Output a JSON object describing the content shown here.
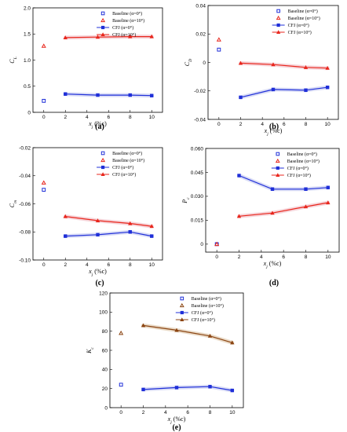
{
  "figure": {
    "panel_labels": [
      "(a)",
      "(b)",
      "(c)",
      "(d)",
      "(e)"
    ]
  },
  "legend_labels": [
    "Baseline (α=0°)",
    "Baseline (α=10°)",
    "CFJ (α=0°)",
    "CFJ (α=10°)"
  ],
  "colors": {
    "blue": "#1f2fd8",
    "red": "#e8261c",
    "brown": "#8b4513",
    "tube_pink": "#f6d5da",
    "tube_blue": "#d9dcf6",
    "tube_tan": "#eadbc8"
  },
  "chart_data": [
    {
      "type": "scatter",
      "panel": "(a)",
      "xlabel": "x_j (%c)",
      "ylabel": "C_L",
      "xlim": [
        -1,
        11
      ],
      "xticks": [
        0,
        2,
        4,
        6,
        8,
        10
      ],
      "xtick_labels": [
        "0",
        "2",
        "4",
        "6",
        "8",
        "10"
      ],
      "ylim": [
        0,
        2.0
      ],
      "yticks": [
        0,
        0.5,
        1.0,
        1.5,
        2.0
      ],
      "ytick_labels": [
        "0",
        "0.5",
        "1.0",
        "1.5",
        "2.0"
      ],
      "legend_position": "top-right",
      "series": [
        {
          "name": "Baseline (α=0°)",
          "x": [
            0
          ],
          "y": [
            0.22
          ]
        },
        {
          "name": "Baseline (α=10°)",
          "x": [
            0
          ],
          "y": [
            1.27
          ]
        },
        {
          "name": "CFJ (α=0°)",
          "x": [
            2,
            5,
            8,
            10
          ],
          "y": [
            0.35,
            0.33,
            0.33,
            0.32
          ]
        },
        {
          "name": "CFJ (α=10°)",
          "x": [
            2,
            5,
            8,
            10
          ],
          "y": [
            1.43,
            1.44,
            1.45,
            1.45
          ]
        }
      ]
    },
    {
      "type": "scatter",
      "panel": "(b)",
      "xlabel": "x_j (%c)",
      "ylabel": "C_D",
      "xlim": [
        -1,
        11
      ],
      "xticks": [
        0,
        2,
        4,
        6,
        8,
        10
      ],
      "xtick_labels": [
        "0",
        "2",
        "4",
        "6",
        "8",
        "10"
      ],
      "ylim": [
        -0.04,
        0.04
      ],
      "yticks": [
        -0.04,
        -0.02,
        0,
        0.02,
        0.04
      ],
      "ytick_labels": [
        "-0.04",
        "-0.02",
        "0",
        "0.02",
        "0.04"
      ],
      "legend_position": "top-right",
      "series": [
        {
          "name": "Baseline (α=0°)",
          "x": [
            0
          ],
          "y": [
            0.009
          ]
        },
        {
          "name": "Baseline (α=10°)",
          "x": [
            0
          ],
          "y": [
            0.016
          ]
        },
        {
          "name": "CFJ (α=0°)",
          "x": [
            2,
            5,
            8,
            10
          ],
          "y": [
            -0.0245,
            -0.019,
            -0.0195,
            -0.0175
          ]
        },
        {
          "name": "CFJ (α=10°)",
          "x": [
            2,
            5,
            8,
            10
          ],
          "y": [
            -0.0005,
            -0.0015,
            -0.0035,
            -0.004
          ]
        }
      ]
    },
    {
      "type": "scatter",
      "panel": "(c)",
      "xlabel": "x_j (%c)",
      "ylabel": "C_m",
      "xlim": [
        -1,
        11
      ],
      "xticks": [
        0,
        2,
        4,
        6,
        8,
        10
      ],
      "xtick_labels": [
        "0",
        "2",
        "4",
        "6",
        "8",
        "10"
      ],
      "ylim": [
        -0.1,
        -0.02
      ],
      "yticks": [
        -0.1,
        -0.08,
        -0.06,
        -0.04,
        -0.02
      ],
      "ytick_labels": [
        "-0.10",
        "-0.08",
        "-0.06",
        "-0.04",
        "-0.02"
      ],
      "legend_position": "top-right",
      "series": [
        {
          "name": "Baseline (α=0°)",
          "x": [
            0
          ],
          "y": [
            -0.05
          ]
        },
        {
          "name": "Baseline (α=10°)",
          "x": [
            0
          ],
          "y": [
            -0.045
          ]
        },
        {
          "name": "CFJ (α=0°)",
          "x": [
            2,
            5,
            8,
            10
          ],
          "y": [
            -0.083,
            -0.082,
            -0.08,
            -0.083
          ]
        },
        {
          "name": "CFJ (α=10°)",
          "x": [
            2,
            5,
            8,
            10
          ],
          "y": [
            -0.069,
            -0.072,
            -0.074,
            -0.076
          ]
        }
      ]
    },
    {
      "type": "scatter",
      "panel": "(d)",
      "xlabel": "x_j (%c)",
      "ylabel": "P_c",
      "xlim": [
        -1,
        11
      ],
      "xticks": [
        0,
        2,
        4,
        6,
        8,
        10
      ],
      "xtick_labels": [
        "0",
        "2",
        "4",
        "6",
        "8",
        "10"
      ],
      "ylim": [
        -0.005,
        0.06
      ],
      "yticks": [
        0,
        0.015,
        0.03,
        0.045,
        0.06
      ],
      "ytick_labels": [
        "0",
        "0.015",
        "0.030",
        "0.045",
        "0.060"
      ],
      "legend_position": "top-right",
      "series": [
        {
          "name": "Baseline (α=0°)",
          "x": [
            0
          ],
          "y": [
            0
          ]
        },
        {
          "name": "Baseline (α=10°)",
          "x": [
            0
          ],
          "y": [
            0
          ]
        },
        {
          "name": "CFJ (α=0°)",
          "x": [
            2,
            5,
            8,
            10
          ],
          "y": [
            0.043,
            0.0345,
            0.0345,
            0.0355
          ]
        },
        {
          "name": "CFJ (α=10°)",
          "x": [
            2,
            5,
            8,
            10
          ],
          "y": [
            0.0175,
            0.0195,
            0.0235,
            0.026
          ]
        }
      ]
    },
    {
      "type": "scatter",
      "panel": "(e)",
      "xlabel": "x_j (%c)",
      "ylabel": "K_c",
      "xlim": [
        -1,
        11
      ],
      "xticks": [
        0,
        2,
        4,
        6,
        8,
        10
      ],
      "xtick_labels": [
        "0",
        "2",
        "4",
        "6",
        "8",
        "10"
      ],
      "ylim": [
        0,
        120
      ],
      "yticks": [
        0,
        20,
        40,
        60,
        80,
        100,
        120
      ],
      "ytick_labels": [
        "0",
        "20",
        "40",
        "60",
        "80",
        "100",
        "120"
      ],
      "legend_position": "top-right",
      "series": [
        {
          "name": "Baseline (α=0°)",
          "x": [
            0
          ],
          "y": [
            24
          ]
        },
        {
          "name": "Baseline (α=10°)",
          "x": [
            0
          ],
          "y": [
            78
          ]
        },
        {
          "name": "CFJ (α=0°)",
          "x": [
            2,
            5,
            8,
            10
          ],
          "y": [
            19,
            21,
            22,
            18
          ]
        },
        {
          "name": "CFJ (α=10°)",
          "x": [
            2,
            5,
            8,
            10
          ],
          "y": [
            86,
            81,
            75,
            68
          ]
        }
      ]
    }
  ]
}
